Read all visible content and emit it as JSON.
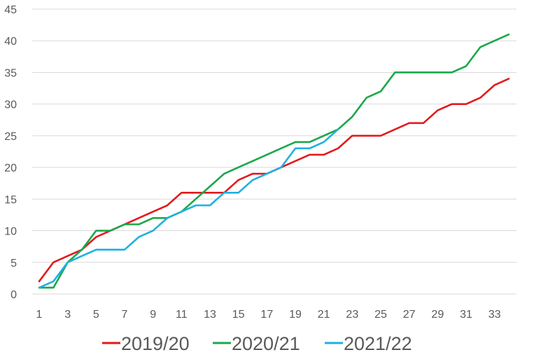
{
  "chart_data": {
    "type": "line",
    "title": "",
    "xlabel": "",
    "ylabel": "",
    "x": [
      1,
      2,
      3,
      4,
      5,
      6,
      7,
      8,
      9,
      10,
      11,
      12,
      13,
      14,
      15,
      16,
      17,
      18,
      19,
      20,
      21,
      22,
      23,
      24,
      25,
      26,
      27,
      28,
      29,
      30,
      31,
      32,
      33,
      34
    ],
    "x_tick_labels": [
      "1",
      "3",
      "5",
      "7",
      "9",
      "11",
      "13",
      "15",
      "17",
      "19",
      "21",
      "23",
      "25",
      "27",
      "29",
      "31",
      "33"
    ],
    "ylim": [
      0,
      45
    ],
    "y_ticks": [
      0,
      5,
      10,
      15,
      20,
      25,
      30,
      35,
      40,
      45
    ],
    "grid": "horizontal",
    "legend": "bottom",
    "series": [
      {
        "name": "2019/20",
        "color": "#e31a1c",
        "values": [
          2,
          5,
          6,
          7,
          9,
          10,
          11,
          12,
          13,
          14,
          16,
          16,
          16,
          16,
          18,
          19,
          19,
          20,
          21,
          22,
          22,
          23,
          25,
          25,
          25,
          26,
          27,
          27,
          29,
          30,
          30,
          31,
          33,
          34
        ]
      },
      {
        "name": "2020/21",
        "color": "#1aa84a",
        "values": [
          1,
          1,
          5,
          7,
          10,
          10,
          11,
          11,
          12,
          12,
          13,
          15,
          17,
          19,
          20,
          21,
          22,
          23,
          24,
          24,
          25,
          26,
          28,
          31,
          32,
          35,
          35,
          35,
          35,
          35,
          36,
          39,
          40,
          41
        ]
      },
      {
        "name": "2021/22",
        "color": "#1fb0e0",
        "values": [
          1,
          2,
          5,
          6,
          7,
          7,
          7,
          9,
          10,
          12,
          13,
          14,
          14,
          16,
          16,
          18,
          19,
          20,
          23,
          23,
          24,
          26,
          null,
          null,
          null,
          null,
          null,
          null,
          null,
          null,
          null,
          null,
          null,
          null
        ]
      }
    ]
  }
}
